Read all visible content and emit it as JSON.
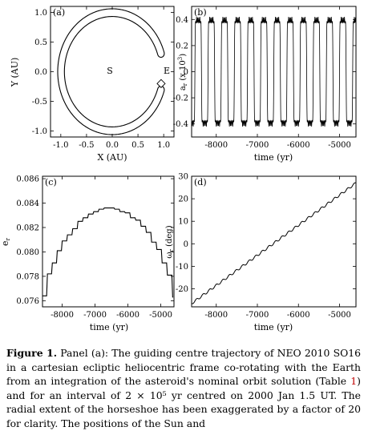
{
  "panels": {
    "a": {
      "label": "(a)",
      "xlabel": "X (AU)",
      "ylabel": "Y (AU)",
      "sun_label": "S",
      "earth_label": "E",
      "xticks": [
        "-1.0",
        "-0.5",
        "0.0",
        "0.5",
        "1.0"
      ],
      "yticks": [
        "1.0",
        "0.5",
        "0.0",
        "-0.5",
        "-1.0"
      ]
    },
    "b": {
      "label": "(b)",
      "xlabel": "time (yr)",
      "ylabel": "a_r (x 10^3)",
      "xticks": [
        "-8000",
        "-7000",
        "-6000",
        "-5000"
      ],
      "yticks": [
        "0.4",
        "0.2",
        "0",
        "-0.2",
        "-0.4"
      ]
    },
    "c": {
      "label": "(c)",
      "xlabel": "time (yr)",
      "ylabel": "e_r",
      "xticks": [
        "-8000",
        "-7000",
        "-6000",
        "-5000"
      ],
      "yticks": [
        "0.086",
        "0.084",
        "0.082",
        "0.080",
        "0.078",
        "0.076"
      ]
    },
    "d": {
      "label": "(d)",
      "xlabel": "time (yr)",
      "ylabel": "ω_r (deg)",
      "xticks": [
        "-8000",
        "-7000",
        "-6000",
        "-5000"
      ],
      "yticks": [
        "30",
        "20",
        "10",
        "0",
        "-10",
        "-20"
      ]
    }
  },
  "caption": {
    "label": "Figure 1.",
    "text_1": " Panel (a): The guiding centre trajectory of NEO 2010 SO16 in a cartesian ecliptic heliocentric frame co-rotating with the Earth from an integration of the asteroid's nominal orbit solution (Table ",
    "ref": "1",
    "text_2": ") and for an interval of 2 × 10⁵ yr centred on 2000 Jan 1.5 UT. The radial extent of the horseshoe has been exaggerated by a factor of 20 for clarity. The positions of the Sun and"
  },
  "chart_data": [
    {
      "panel": "a",
      "type": "line",
      "title": "",
      "xlabel": "X (AU)",
      "ylabel": "Y (AU)",
      "xlim": [
        -1.2,
        1.2
      ],
      "ylim": [
        -1.1,
        1.1
      ],
      "description_of_shape": "horseshoe",
      "series": [
        {
          "name": "",
          "outer_radius": 1.06,
          "inner_radius": 0.93,
          "open_angle_deg_from": -18,
          "open_angle_deg_to": 18
        }
      ],
      "annotations": [
        {
          "text": "S",
          "x": 0.0,
          "y": 0.0
        },
        {
          "text": "E",
          "x": 1.0,
          "y": 0.0
        }
      ]
    },
    {
      "panel": "b",
      "type": "line",
      "xlabel": "time (yr)",
      "ylabel": "a_r (x 10^3)",
      "xlim": [
        -8600,
        -4600
      ],
      "ylim": [
        -0.5,
        0.5
      ],
      "series": [
        {
          "name": "",
          "period_yr": 320,
          "amplitude": 0.42,
          "phase_yr": -8520
        }
      ]
    },
    {
      "panel": "c",
      "type": "line",
      "xlabel": "time (yr)",
      "ylabel": "e_r",
      "xlim": [
        -8600,
        -4600
      ],
      "ylim": [
        0.0755,
        0.0862
      ],
      "series": [
        {
          "name": "",
          "x": [
            -8600,
            -8450,
            -8300,
            -8150,
            -8000,
            -7840,
            -7680,
            -7520,
            -7360,
            -7200,
            -7040,
            -6880,
            -6720,
            -6560,
            -6400,
            -6240,
            -6080,
            -5920,
            -5760,
            -5600,
            -5440,
            -5280,
            -5120,
            -4960,
            -4800,
            -4640
          ],
          "y": [
            0.0764,
            0.0782,
            0.0791,
            0.0801,
            0.0809,
            0.0814,
            0.0819,
            0.0825,
            0.0828,
            0.0831,
            0.0833,
            0.0835,
            0.0836,
            0.0836,
            0.0835,
            0.0833,
            0.0832,
            0.0828,
            0.0826,
            0.0821,
            0.0816,
            0.0808,
            0.0802,
            0.0791,
            0.0781,
            0.0763
          ]
        }
      ]
    },
    {
      "panel": "d",
      "type": "line",
      "xlabel": "time (yr)",
      "ylabel": "ω_r (deg)",
      "xlim": [
        -8600,
        -4600
      ],
      "ylim": [
        -28,
        30
      ],
      "series": [
        {
          "name": "",
          "x": [
            -8600,
            -4600
          ],
          "y": [
            -26.5,
            27.0
          ]
        }
      ]
    }
  ]
}
